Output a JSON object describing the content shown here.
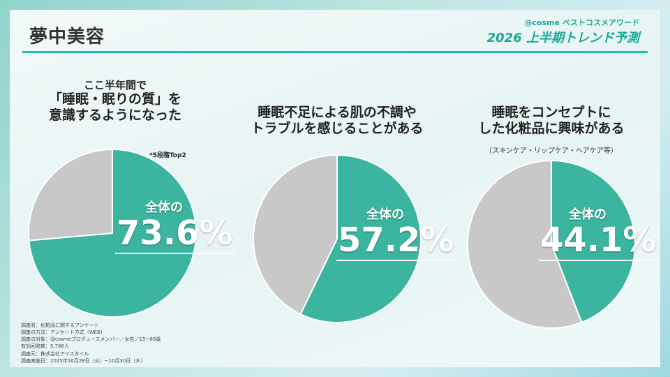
{
  "header": {
    "title": "夢中美容",
    "brand_line": "@cosme ベストコスメアワード",
    "brand_title": "2026 上半期トレンド予測"
  },
  "chart_data": [
    {
      "type": "pie",
      "title_lines": [
        "ここ半年間で",
        "「睡眠・眠りの質」を",
        "意識するようになった"
      ],
      "note": "*5段階Top2",
      "label_prefix": "全体の",
      "values": [
        73.6,
        26.4
      ],
      "display": "73.6%",
      "colors": [
        "#3bb5a0",
        "#c8c8c8"
      ]
    },
    {
      "type": "pie",
      "title_lines": [
        "睡眠不足による肌の不調や",
        "トラブルを感じることがある"
      ],
      "label_prefix": "全体の",
      "values": [
        57.2,
        42.8
      ],
      "display": "57.2%",
      "colors": [
        "#3bb5a0",
        "#c8c8c8"
      ]
    },
    {
      "type": "pie",
      "title_lines": [
        "睡眠をコンセプトに",
        "した化粧品に興味がある"
      ],
      "subtitle": "（スキンケア・リップケア・ヘアケア等）",
      "label_prefix": "全体の",
      "values": [
        44.1,
        55.9
      ],
      "display": "44.1%",
      "colors": [
        "#3bb5a0",
        "#c8c8c8"
      ]
    }
  ],
  "footnote": [
    "調査名：化粧品に関するアンケート",
    "調査の方法：アンケート方式（WEB）",
    "調査の対象：@cosmeプロデュースメンバー／女性／15~69歳",
    "有効回答数：5,786人",
    "調査元：株式会社アイスタイル",
    "調査実施日：2025年10月28日（火）~10月30日（木）"
  ]
}
